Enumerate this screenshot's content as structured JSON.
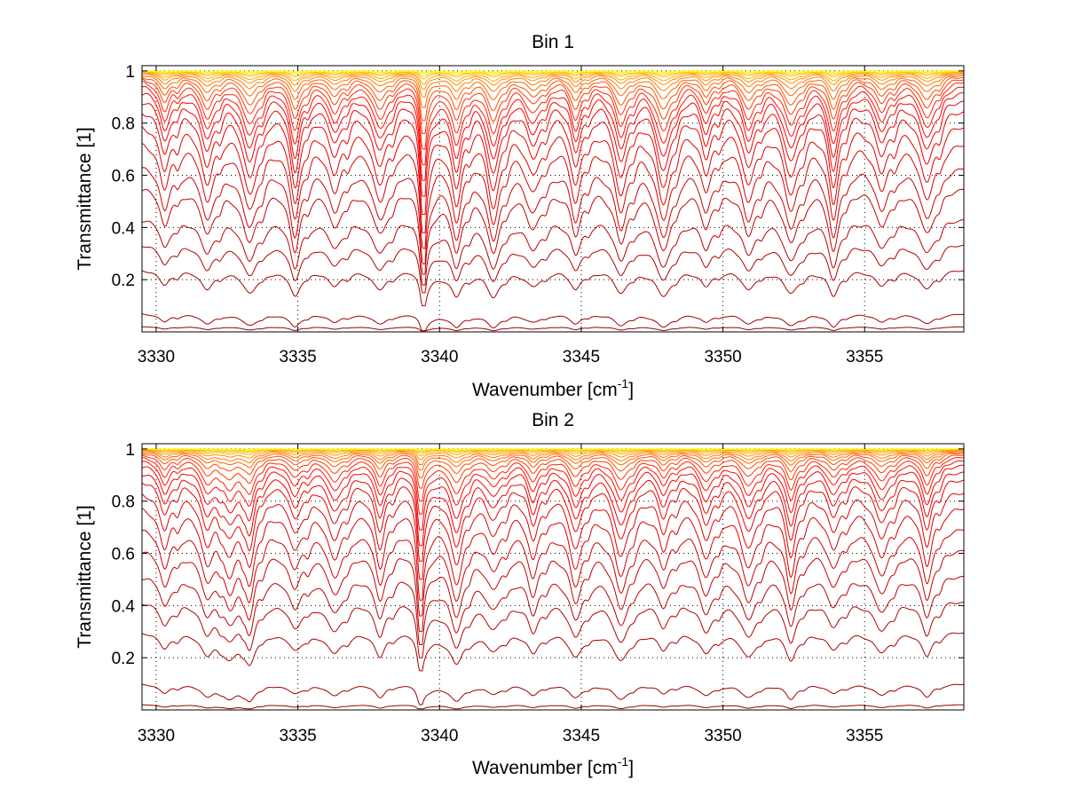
{
  "chart_data": [
    {
      "type": "line",
      "title": "Bin 1",
      "xlabel": "Wavenumber [cm",
      "xlabel_sup": "-1",
      "xlabel_end": "]",
      "ylabel": "Transmittance [1]",
      "xlim": [
        3329.5,
        3358.5
      ],
      "ylim": [
        0,
        1.02
      ],
      "xticks": [
        3330,
        3335,
        3340,
        3345,
        3350,
        3355
      ],
      "yticks": [
        0.2,
        0.4,
        0.6,
        0.8,
        1
      ],
      "ytick_labels": [
        "0.2",
        "0.4",
        "0.6",
        "0.8",
        "1"
      ],
      "grid": true,
      "grid_style": "dotted",
      "legend": "none",
      "colormap": "autumn (dark red to yellow)",
      "line_count": 40,
      "strong_band_center": 3339.4,
      "line_centers": [
        3330.3,
        3331.8,
        3333.3,
        3334.9,
        3336.3,
        3337.9,
        3340.6,
        3341.9,
        3343.3,
        3344.8,
        3346.4,
        3347.9,
        3349.4,
        3350.9,
        3352.4,
        3353.9,
        3355.6,
        3357.2
      ],
      "series_baseline_transmittance": [
        0.02,
        0.07,
        0.24,
        0.34,
        0.44,
        0.56,
        0.64,
        0.73,
        0.8,
        0.86,
        0.9,
        0.93,
        0.95,
        0.965,
        0.975,
        0.983,
        0.988,
        0.992,
        0.995,
        0.997,
        0.998,
        0.999,
        1.0,
        1.0
      ],
      "series_min_transmittance": [
        0.0,
        0.0,
        0.1,
        0.15,
        0.18,
        0.22,
        0.26,
        0.32,
        0.38,
        0.45,
        0.52,
        0.58,
        0.64,
        0.7,
        0.76,
        0.81,
        0.86,
        0.9,
        0.93,
        0.95,
        0.97,
        0.98,
        0.99,
        0.995
      ]
    },
    {
      "type": "line",
      "title": "Bin 2",
      "xlabel": "Wavenumber [cm",
      "xlabel_sup": "-1",
      "xlabel_end": "]",
      "ylabel": "Transmittance [1]",
      "xlim": [
        3329.5,
        3358.5
      ],
      "ylim": [
        0,
        1.02
      ],
      "xticks": [
        3330,
        3335,
        3340,
        3345,
        3350,
        3355
      ],
      "yticks": [
        0.2,
        0.4,
        0.6,
        0.8,
        1
      ],
      "ytick_labels": [
        "0.2",
        "0.4",
        "0.6",
        "0.8",
        "1"
      ],
      "grid": true,
      "grid_style": "dotted",
      "legend": "none",
      "colormap": "autumn (dark red to yellow)",
      "line_count": 40,
      "strong_band_center": 3339.3,
      "line_centers": [
        3330.3,
        3331.8,
        3332.6,
        3333.3,
        3334.9,
        3336.3,
        3337.9,
        3340.6,
        3341.9,
        3343.3,
        3344.8,
        3346.4,
        3347.9,
        3349.4,
        3350.9,
        3352.4,
        3353.9,
        3355.6,
        3357.2
      ],
      "series_baseline_transmittance": [
        0.02,
        0.1,
        0.3,
        0.42,
        0.52,
        0.62,
        0.7,
        0.78,
        0.84,
        0.89,
        0.92,
        0.945,
        0.96,
        0.972,
        0.98,
        0.986,
        0.99,
        0.994,
        0.996,
        0.998,
        0.999,
        1.0,
        1.0,
        1.0
      ],
      "series_min_transmittance": [
        0.0,
        0.02,
        0.15,
        0.2,
        0.25,
        0.3,
        0.36,
        0.42,
        0.5,
        0.57,
        0.63,
        0.69,
        0.75,
        0.8,
        0.85,
        0.89,
        0.92,
        0.94,
        0.96,
        0.975,
        0.985,
        0.99,
        0.995,
        0.998
      ]
    }
  ]
}
